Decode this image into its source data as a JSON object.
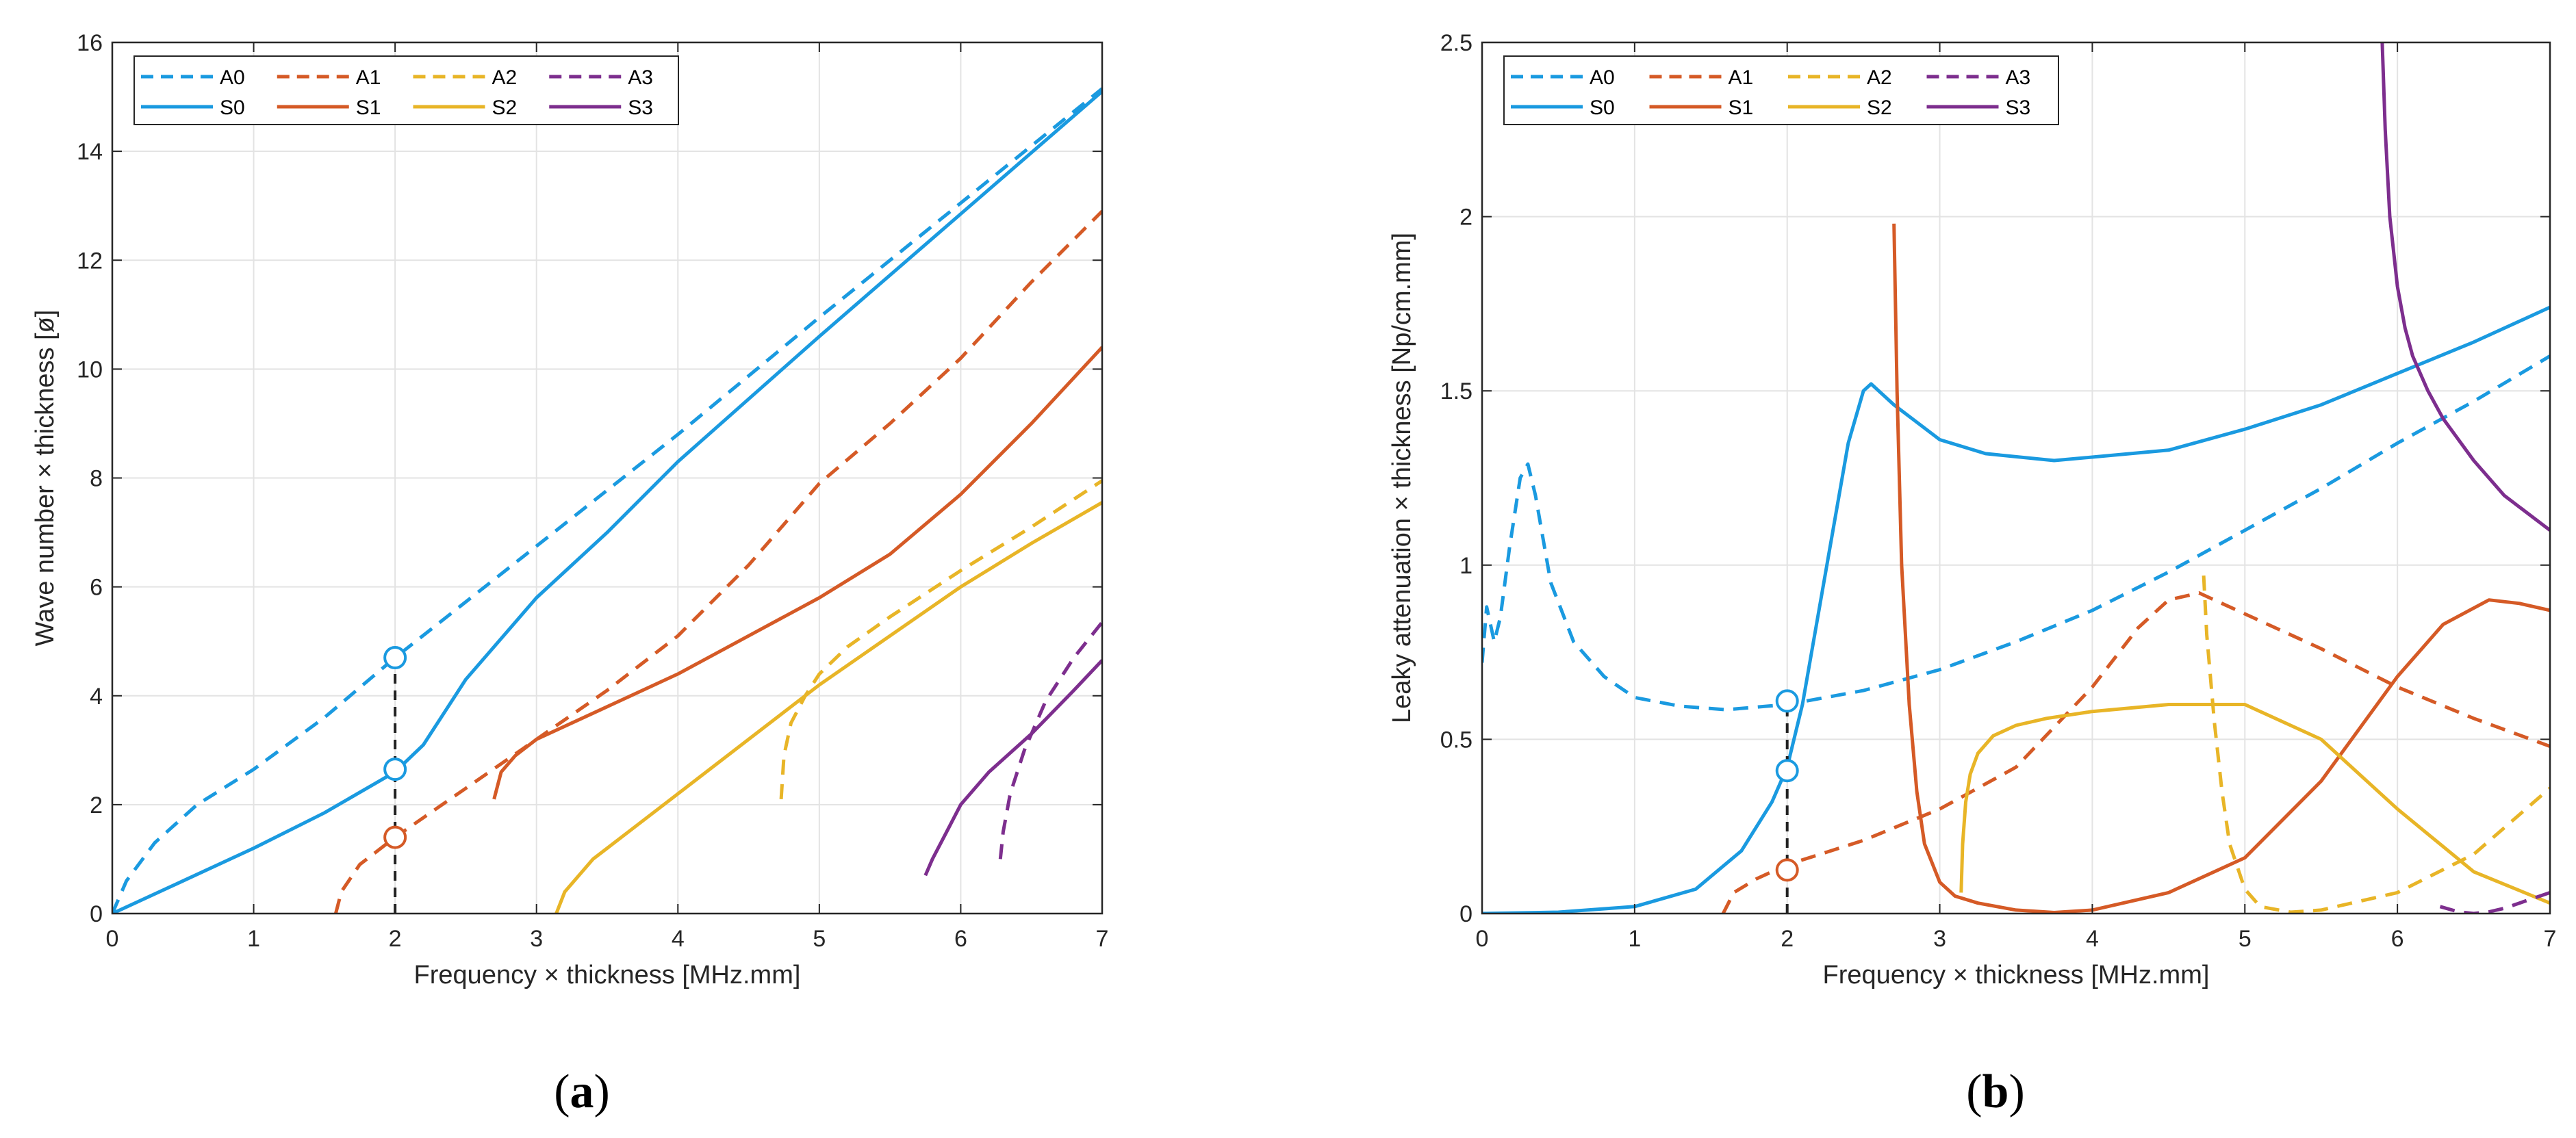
{
  "colors": {
    "blue": "#1a9ae0",
    "orange": "#d55a26",
    "yellow": "#e8b527",
    "purple": "#7d2e8e",
    "black": "#222222"
  },
  "captions": [
    {
      "open": "(",
      "letter": "a",
      "close": ")"
    },
    {
      "open": "(",
      "letter": "b",
      "close": ")"
    }
  ],
  "chart_data": [
    {
      "type": "line",
      "panel": "a",
      "title": "",
      "xlabel": "Frequency × thickness [MHz.mm]",
      "ylabel": "Wave number × thickness  [ø]",
      "xlim": [
        0,
        7
      ],
      "ylim": [
        0,
        16
      ],
      "xticks": [
        0,
        1,
        2,
        3,
        4,
        5,
        6,
        7
      ],
      "yticks": [
        0,
        2,
        4,
        6,
        8,
        10,
        12,
        14,
        16
      ],
      "grid": true,
      "legend": {
        "placement": "top-left",
        "columns": 4,
        "entries": [
          "A0",
          "A1",
          "A2",
          "A3",
          "S0",
          "S1",
          "S2",
          "S3"
        ]
      },
      "series": [
        {
          "name": "A0",
          "color": "blue",
          "dash": true,
          "x": [
            0,
            0.1,
            0.3,
            0.6,
            1,
            1.5,
            2,
            3,
            4,
            5,
            6,
            7
          ],
          "y": [
            0,
            0.6,
            1.3,
            2.0,
            2.65,
            3.6,
            4.7,
            6.75,
            8.8,
            10.95,
            13.05,
            15.15
          ]
        },
        {
          "name": "S0",
          "color": "blue",
          "dash": false,
          "x": [
            0,
            0.5,
            1,
            1.5,
            2,
            2.2,
            2.5,
            3,
            3.5,
            4,
            5,
            6,
            7
          ],
          "y": [
            0,
            0.6,
            1.2,
            1.85,
            2.6,
            3.1,
            4.3,
            5.8,
            7.0,
            8.3,
            10.6,
            12.85,
            15.1
          ]
        },
        {
          "name": "A1",
          "color": "orange",
          "dash": true,
          "x": [
            1.58,
            1.62,
            1.75,
            2,
            2.5,
            3,
            3.5,
            4,
            4.5,
            5,
            5.5,
            6,
            6.5,
            7
          ],
          "y": [
            0,
            0.4,
            0.9,
            1.4,
            2.3,
            3.2,
            4.1,
            5.1,
            6.4,
            7.9,
            9.0,
            10.2,
            11.6,
            12.9
          ]
        },
        {
          "name": "S1",
          "color": "orange",
          "dash": false,
          "x": [
            2.7,
            2.75,
            2.85,
            3,
            3.5,
            4,
            4.5,
            5,
            5.5,
            6,
            6.5,
            7
          ],
          "y": [
            2.1,
            2.6,
            2.9,
            3.2,
            3.8,
            4.4,
            5.1,
            5.8,
            6.6,
            7.7,
            9.0,
            10.4
          ]
        },
        {
          "name": "A2",
          "color": "yellow",
          "dash": true,
          "x": [
            4.73,
            4.75,
            4.8,
            4.9,
            5.0,
            5.2,
            5.5,
            6,
            6.5,
            7
          ],
          "y": [
            2.1,
            2.9,
            3.5,
            4.0,
            4.4,
            4.9,
            5.45,
            6.3,
            7.1,
            7.95
          ]
        },
        {
          "name": "S2",
          "color": "yellow",
          "dash": false,
          "x": [
            3.14,
            3.2,
            3.4,
            3.7,
            4,
            4.5,
            5,
            5.5,
            6,
            6.5,
            7
          ],
          "y": [
            0,
            0.4,
            1.0,
            1.6,
            2.2,
            3.2,
            4.2,
            5.1,
            6.0,
            6.8,
            7.55
          ]
        },
        {
          "name": "A3",
          "color": "purple",
          "dash": true,
          "x": [
            6.28,
            6.3,
            6.35,
            6.45,
            6.6,
            6.8,
            7
          ],
          "y": [
            1.0,
            1.5,
            2.2,
            3.0,
            3.9,
            4.7,
            5.35
          ]
        },
        {
          "name": "S3",
          "color": "purple",
          "dash": false,
          "x": [
            5.75,
            5.8,
            5.9,
            6.0,
            6.2,
            6.5,
            6.8,
            7
          ],
          "y": [
            0.7,
            1.0,
            1.5,
            2.0,
            2.6,
            3.3,
            4.1,
            4.65
          ]
        }
      ],
      "vline": {
        "x": 2,
        "y0": 0,
        "y1": 4.7,
        "color": "black"
      },
      "markers": [
        {
          "x": 2,
          "y": 4.7,
          "color": "blue"
        },
        {
          "x": 2,
          "y": 2.65,
          "color": "blue"
        },
        {
          "x": 2,
          "y": 1.4,
          "color": "orange"
        }
      ]
    },
    {
      "type": "line",
      "panel": "b",
      "title": "",
      "xlabel": "Frequency × thickness [MHz.mm]",
      "ylabel": "Leaky attenuation × thickness [Np/cm.mm]",
      "xlim": [
        0,
        7
      ],
      "ylim": [
        0,
        2.5
      ],
      "xticks": [
        0,
        1,
        2,
        3,
        4,
        5,
        6,
        7
      ],
      "yticks": [
        0,
        0.5,
        1,
        1.5,
        2,
        2.5
      ],
      "grid": true,
      "legend": {
        "placement": "top-left",
        "columns": 4,
        "entries": [
          "A0",
          "A1",
          "A2",
          "A3",
          "S0",
          "S1",
          "S2",
          "S3"
        ]
      },
      "series": [
        {
          "name": "A0",
          "color": "blue",
          "dash": true,
          "x": [
            0,
            0.03,
            0.08,
            0.12,
            0.18,
            0.25,
            0.3,
            0.35,
            0.45,
            0.6,
            0.8,
            1,
            1.3,
            1.6,
            2,
            2.5,
            3,
            3.5,
            4,
            4.5,
            5,
            5.5,
            6,
            6.5,
            7
          ],
          "y": [
            0.72,
            0.88,
            0.78,
            0.85,
            1.05,
            1.25,
            1.29,
            1.2,
            0.95,
            0.78,
            0.68,
            0.62,
            0.595,
            0.585,
            0.6,
            0.64,
            0.7,
            0.78,
            0.87,
            0.98,
            1.1,
            1.22,
            1.35,
            1.47,
            1.6
          ]
        },
        {
          "name": "S0",
          "color": "blue",
          "dash": false,
          "x": [
            0,
            0.5,
            1,
            1.4,
            1.7,
            1.9,
            2,
            2.1,
            2.2,
            2.3,
            2.4,
            2.5,
            2.55,
            2.7,
            3,
            3.3,
            3.75,
            4.5,
            5,
            5.5,
            6,
            6.5,
            7
          ],
          "y": [
            0,
            0.004,
            0.02,
            0.07,
            0.18,
            0.32,
            0.42,
            0.6,
            0.85,
            1.1,
            1.35,
            1.5,
            1.52,
            1.46,
            1.36,
            1.32,
            1.3,
            1.33,
            1.39,
            1.46,
            1.55,
            1.64,
            1.74
          ]
        },
        {
          "name": "A1",
          "color": "orange",
          "dash": true,
          "x": [
            1.58,
            1.65,
            1.8,
            2,
            2.5,
            3,
            3.5,
            4,
            4.3,
            4.5,
            4.7,
            5,
            5.5,
            6,
            6.5,
            7
          ],
          "y": [
            0,
            0.06,
            0.1,
            0.14,
            0.21,
            0.3,
            0.42,
            0.65,
            0.82,
            0.9,
            0.92,
            0.86,
            0.76,
            0.65,
            0.56,
            0.48
          ]
        },
        {
          "name": "S1",
          "color": "orange",
          "dash": false,
          "x": [
            2.7,
            2.72,
            2.75,
            2.8,
            2.85,
            2.9,
            3,
            3.1,
            3.25,
            3.5,
            3.75,
            4,
            4.5,
            5,
            5.5,
            6,
            6.3,
            6.6,
            6.8,
            7
          ],
          "y": [
            1.98,
            1.5,
            1.0,
            0.6,
            0.35,
            0.2,
            0.09,
            0.05,
            0.03,
            0.01,
            0.003,
            0.01,
            0.06,
            0.16,
            0.38,
            0.68,
            0.83,
            0.9,
            0.89,
            0.87
          ]
        },
        {
          "name": "A2",
          "color": "yellow",
          "dash": true,
          "x": [
            4.73,
            4.75,
            4.8,
            4.85,
            4.9,
            5.0,
            5.1,
            5.3,
            5.5,
            6,
            6.5,
            7
          ],
          "y": [
            0.97,
            0.8,
            0.55,
            0.35,
            0.2,
            0.07,
            0.02,
            0.004,
            0.01,
            0.06,
            0.17,
            0.36
          ]
        },
        {
          "name": "S2",
          "color": "yellow",
          "dash": false,
          "x": [
            3.14,
            3.15,
            3.17,
            3.2,
            3.25,
            3.35,
            3.5,
            3.7,
            4,
            4.5,
            5,
            5.5,
            6,
            6.5,
            7
          ],
          "y": [
            0.06,
            0.2,
            0.32,
            0.4,
            0.46,
            0.51,
            0.54,
            0.56,
            0.58,
            0.6,
            0.6,
            0.5,
            0.3,
            0.12,
            0.03
          ]
        },
        {
          "name": "A3",
          "color": "purple",
          "dash": true,
          "x": [
            6.28,
            6.4,
            6.5,
            6.6,
            6.7,
            6.8,
            7
          ],
          "y": [
            0.02,
            0.005,
            0.0,
            0.005,
            0.015,
            0.03,
            0.06
          ]
        },
        {
          "name": "S3",
          "color": "purple",
          "dash": false,
          "x": [
            5.9,
            5.92,
            5.95,
            6.0,
            6.05,
            6.1,
            6.2,
            6.3,
            6.5,
            6.7,
            7
          ],
          "y": [
            2.5,
            2.25,
            2.0,
            1.8,
            1.68,
            1.6,
            1.5,
            1.42,
            1.3,
            1.2,
            1.1
          ]
        }
      ],
      "vline": {
        "x": 2,
        "y0": 0,
        "y1": 0.61,
        "color": "black"
      },
      "markers": [
        {
          "x": 2,
          "y": 0.61,
          "color": "blue"
        },
        {
          "x": 2,
          "y": 0.41,
          "color": "blue"
        },
        {
          "x": 2,
          "y": 0.125,
          "color": "orange"
        }
      ]
    }
  ]
}
